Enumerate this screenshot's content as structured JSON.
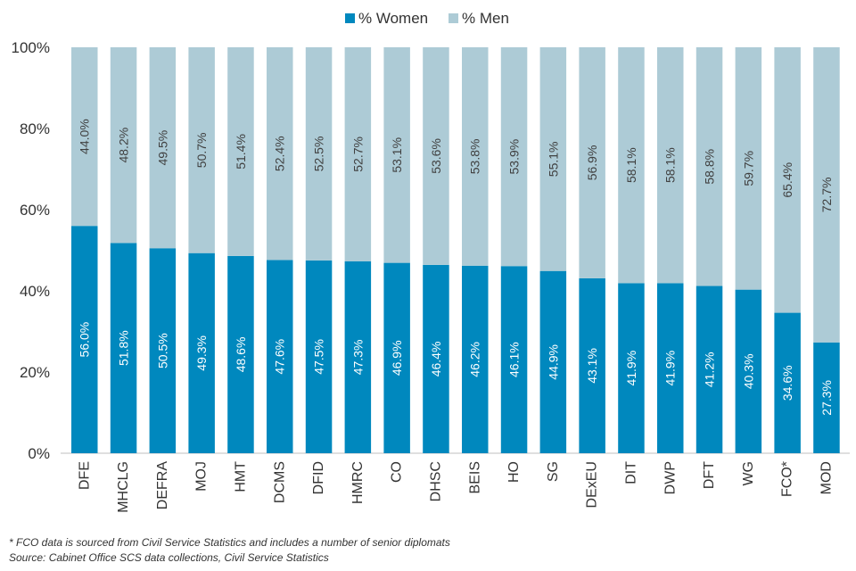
{
  "chart_data": {
    "type": "bar",
    "stacked": true,
    "title": "",
    "xlabel": "",
    "ylabel": "",
    "ylim": [
      0,
      100
    ],
    "y_ticks": [
      "0%",
      "20%",
      "40%",
      "60%",
      "80%",
      "100%"
    ],
    "legend_position": "top-center",
    "grid": false,
    "categories": [
      "DFE",
      "MHCLG",
      "DEFRA",
      "MOJ",
      "HMT",
      "DCMS",
      "DFID",
      "HMRC",
      "CO",
      "DHSC",
      "BEIS",
      "HO",
      "SG",
      "DExEU",
      "DIT",
      "DWP",
      "DFT",
      "WG",
      "FCO*",
      "MOD"
    ],
    "series": [
      {
        "name": "% Women",
        "color": "#0088BE",
        "values": [
          56.0,
          51.8,
          50.5,
          49.3,
          48.6,
          47.6,
          47.5,
          47.3,
          46.9,
          46.4,
          46.2,
          46.1,
          44.9,
          43.1,
          41.9,
          41.9,
          41.2,
          40.3,
          34.6,
          27.3
        ],
        "labels": [
          "56.0%",
          "51.8%",
          "50.5%",
          "49.3%",
          "48.6%",
          "47.6%",
          "47.5%",
          "47.3%",
          "46.9%",
          "46.4%",
          "46.2%",
          "46.1%",
          "44.9%",
          "43.1%",
          "41.9%",
          "41.9%",
          "41.2%",
          "40.3%",
          "34.6%",
          "27.3%"
        ]
      },
      {
        "name": "% Men",
        "color": "#ADCBD6",
        "values": [
          44.0,
          48.2,
          49.5,
          50.7,
          51.4,
          52.4,
          52.5,
          52.7,
          53.1,
          53.6,
          53.8,
          53.9,
          55.1,
          56.9,
          58.1,
          58.1,
          58.8,
          59.7,
          65.4,
          72.7
        ],
        "labels": [
          "44.0%",
          "48.2%",
          "49.5%",
          "50.7%",
          "51.4%",
          "52.4%",
          "52.5%",
          "52.7%",
          "53.1%",
          "53.6%",
          "53.8%",
          "53.9%",
          "55.1%",
          "56.9%",
          "58.1%",
          "58.1%",
          "58.8%",
          "59.7%",
          "65.4%",
          "72.7%"
        ]
      }
    ]
  },
  "footnotes": {
    "note": "* FCO data is sourced from Civil Service Statistics and includes a number of senior diplomats",
    "source": "Source: Cabinet Office SCS data collections, Civil Service Statistics"
  }
}
